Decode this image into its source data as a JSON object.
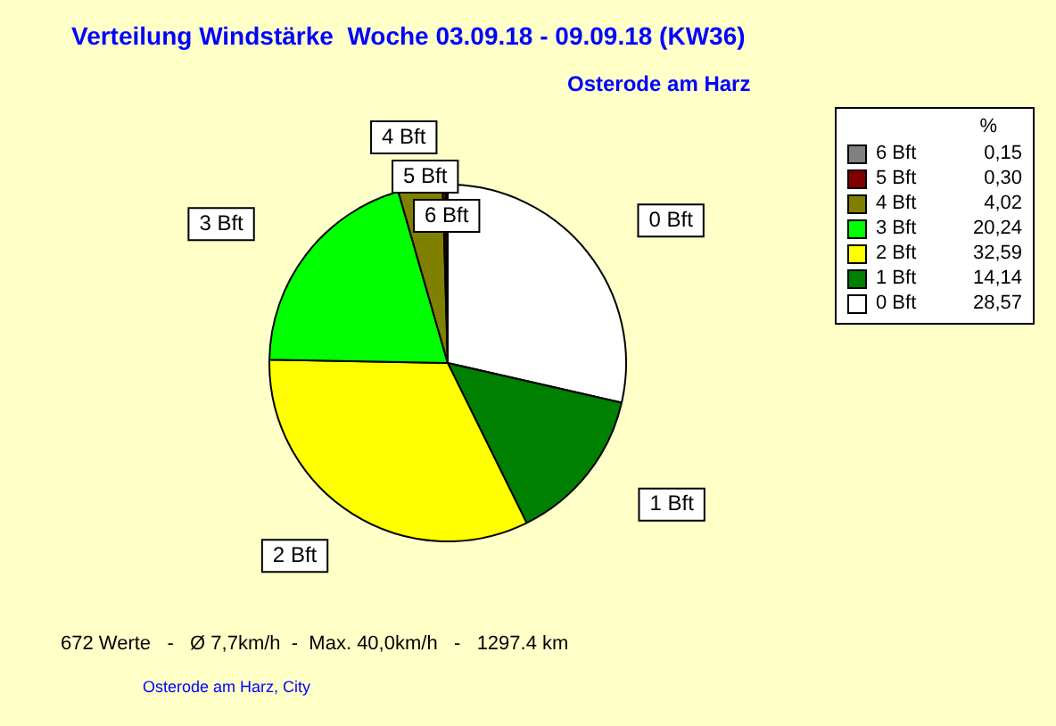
{
  "chart_data": {
    "type": "pie",
    "title": "Verteilung Windstärke  Woche 03.09.18 - 09.09.18 (KW36)",
    "subtitle": "Osterode am Harz",
    "legend_title": "%",
    "legend": "top right",
    "categories": [
      "0 Bft",
      "1 Bft",
      "2 Bft",
      "3 Bft",
      "4 Bft",
      "5 Bft",
      "6 Bft"
    ],
    "values": [
      28.57,
      14.14,
      32.59,
      20.24,
      4.02,
      0.3,
      0.15
    ],
    "value_labels": [
      "28,57",
      "14,14",
      "32,59",
      "20,24",
      "4,02",
      "0,30",
      "0,15"
    ],
    "colors": [
      "#ffffff",
      "#008000",
      "#ffff00",
      "#00ff00",
      "#808000",
      "#800000",
      "#808080"
    ],
    "annotations": [
      "672 Werte   -   Ø 7,7km/h  -  Max. 40,0km/h   -   1297.4 km",
      "Osterode am Harz, City"
    ]
  }
}
